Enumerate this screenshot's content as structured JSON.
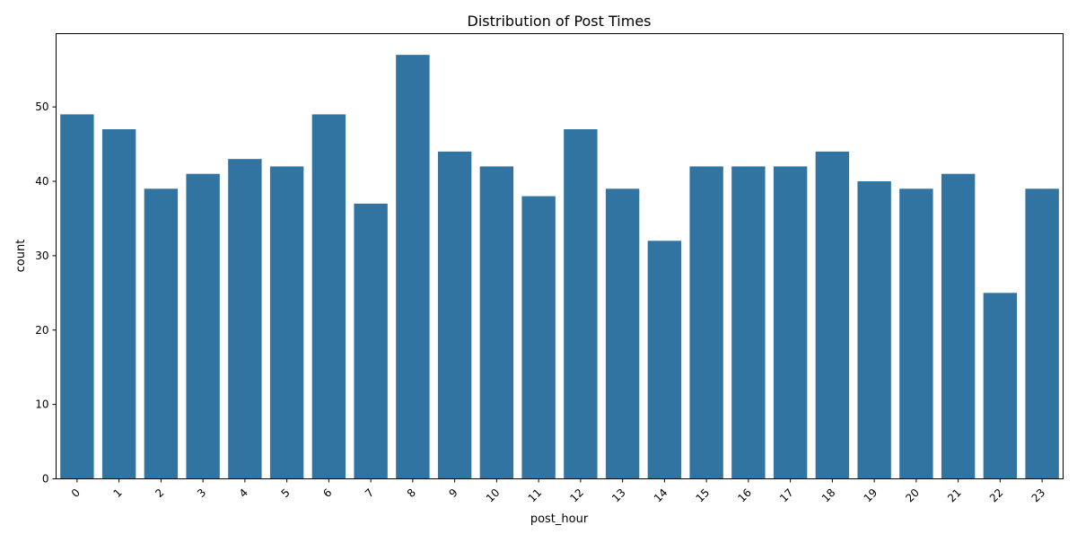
{
  "chart_data": {
    "type": "bar",
    "title": "Distribution of Post Times",
    "xlabel": "post_hour",
    "ylabel": "count",
    "categories": [
      "0",
      "1",
      "2",
      "3",
      "4",
      "5",
      "6",
      "7",
      "8",
      "9",
      "10",
      "11",
      "12",
      "13",
      "14",
      "15",
      "16",
      "17",
      "18",
      "19",
      "20",
      "21",
      "22",
      "23"
    ],
    "values": [
      49,
      47,
      39,
      41,
      43,
      42,
      49,
      37,
      57,
      44,
      42,
      38,
      47,
      39,
      32,
      42,
      42,
      42,
      44,
      40,
      39,
      41,
      25,
      39
    ],
    "ylim": [
      0,
      59.85
    ],
    "yticks": [
      0,
      10,
      20,
      30,
      40,
      50
    ],
    "bar_color": "#3274a1",
    "grid": false,
    "x_tick_rotation": 45
  }
}
